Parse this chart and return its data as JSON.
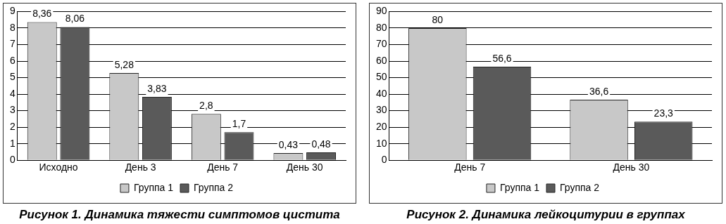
{
  "chart_data": [
    {
      "type": "bar",
      "title": "Рисунок 1. Динамика тяжести симптомов цистита",
      "categories": [
        "Исходно",
        "День 3",
        "День 7",
        "День 30"
      ],
      "series": [
        {
          "name": "Группа 1",
          "color": "#c8c8c8",
          "values": [
            8.36,
            5.28,
            2.8,
            0.43
          ],
          "value_labels": [
            "8,36",
            "5,28",
            "2,8",
            "0,43"
          ]
        },
        {
          "name": "Группа 2",
          "color": "#5a5a5a",
          "values": [
            8.06,
            3.83,
            1.7,
            0.48
          ],
          "value_labels": [
            "8,06",
            "3,83",
            "1,7",
            "0,48"
          ]
        }
      ],
      "ylim": [
        0,
        9
      ],
      "yticks": [
        0,
        1,
        2,
        3,
        4,
        5,
        6,
        7,
        8,
        9
      ],
      "grid": "y",
      "legend": "bottom"
    },
    {
      "type": "bar",
      "title": "Рисунок 2. Динамика лейкоцитурии в группах",
      "categories": [
        "День 7",
        "День 30"
      ],
      "series": [
        {
          "name": "Группа 1",
          "color": "#c8c8c8",
          "values": [
            80,
            36.6
          ],
          "value_labels": [
            "80",
            "36,6"
          ]
        },
        {
          "name": "Группа 2",
          "color": "#5a5a5a",
          "values": [
            56.6,
            23.3
          ],
          "value_labels": [
            "56,6",
            "23,3"
          ]
        }
      ],
      "ylim": [
        0,
        90
      ],
      "yticks": [
        0,
        10,
        20,
        30,
        40,
        50,
        60,
        70,
        80,
        90
      ],
      "grid": "y",
      "legend": "bottom"
    }
  ]
}
